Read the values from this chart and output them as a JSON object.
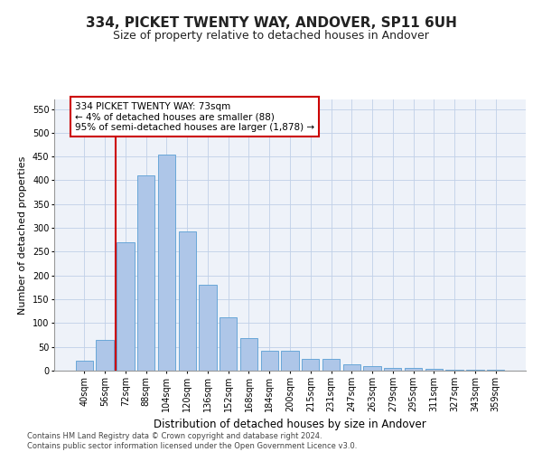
{
  "title": "334, PICKET TWENTY WAY, ANDOVER, SP11 6UH",
  "subtitle": "Size of property relative to detached houses in Andover",
  "xlabel": "Distribution of detached houses by size in Andover",
  "ylabel": "Number of detached properties",
  "categories": [
    "40sqm",
    "56sqm",
    "72sqm",
    "88sqm",
    "104sqm",
    "120sqm",
    "136sqm",
    "152sqm",
    "168sqm",
    "184sqm",
    "200sqm",
    "215sqm",
    "231sqm",
    "247sqm",
    "263sqm",
    "279sqm",
    "295sqm",
    "311sqm",
    "327sqm",
    "343sqm",
    "359sqm"
  ],
  "values": [
    20,
    65,
    270,
    410,
    455,
    293,
    180,
    113,
    68,
    42,
    42,
    25,
    25,
    13,
    10,
    5,
    5,
    3,
    2,
    1,
    2
  ],
  "bar_color": "#aec6e8",
  "bar_edge_color": "#5a9fd4",
  "vline_x_index": 2,
  "vline_color": "#cc0000",
  "annotation_text": "334 PICKET TWENTY WAY: 73sqm\n← 4% of detached houses are smaller (88)\n95% of semi-detached houses are larger (1,878) →",
  "annotation_box_color": "#ffffff",
  "annotation_box_edge_color": "#cc0000",
  "ylim": [
    0,
    570
  ],
  "yticks": [
    0,
    50,
    100,
    150,
    200,
    250,
    300,
    350,
    400,
    450,
    500,
    550
  ],
  "bg_color": "#eef2f9",
  "footnote": "Contains HM Land Registry data © Crown copyright and database right 2024.\nContains public sector information licensed under the Open Government Licence v3.0.",
  "title_fontsize": 11,
  "subtitle_fontsize": 9,
  "xlabel_fontsize": 8.5,
  "ylabel_fontsize": 8,
  "annotation_fontsize": 7.5,
  "footnote_fontsize": 6,
  "tick_fontsize": 7
}
